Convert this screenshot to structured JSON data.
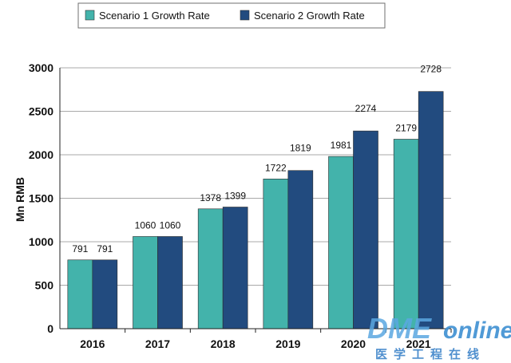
{
  "chart_data": {
    "type": "bar",
    "categories": [
      "2016",
      "2017",
      "2018",
      "2019",
      "2020",
      "2021"
    ],
    "series": [
      {
        "name": "Scenario 1 Growth Rate",
        "values": [
          791,
          1060,
          1378,
          1722,
          1981,
          2179
        ],
        "color": "#43b3ab"
      },
      {
        "name": "Scenario 2 Growth Rate",
        "values": [
          791,
          1060,
          1399,
          1819,
          2274,
          2728
        ],
        "color": "#224b7f"
      }
    ],
    "ylabel": "Mn RMB",
    "xlabel": "",
    "ylim": [
      0,
      3000
    ],
    "yticks": [
      0,
      500,
      1000,
      1500,
      2000,
      2500,
      3000
    ],
    "grid": true,
    "legend_position": "top"
  },
  "watermark": {
    "brand": "DME",
    "brand_suffix": "online",
    "subtitle": "医学工程在线",
    "color_brand": "#5aa7e0",
    "color_suffix": "#3d8fd1",
    "color_sub": "#4f8fce"
  }
}
